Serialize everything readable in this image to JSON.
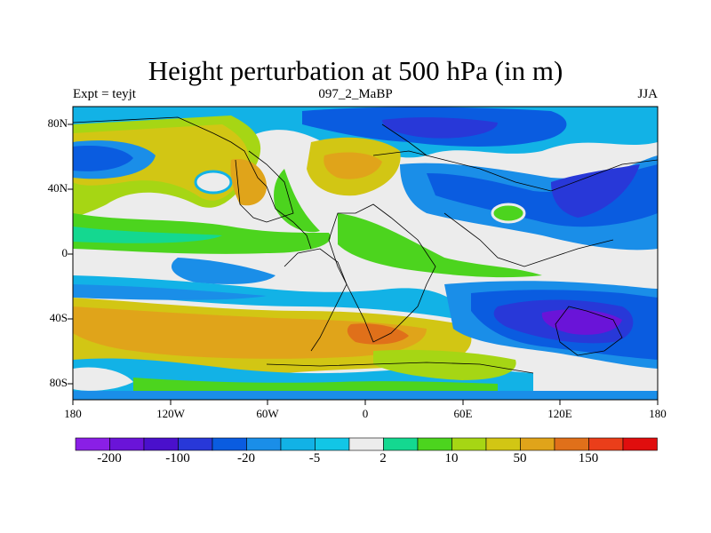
{
  "figure": {
    "title": "Height perturbation at 500 hPa (in m)",
    "left_label": "Expt = teyjt",
    "center_label": "097_2_MaBP",
    "right_label": "JJA"
  },
  "axes": {
    "lat_ticks": [
      "80N",
      "40N",
      "0",
      "40S",
      "80S"
    ],
    "lon_ticks": [
      "180",
      "120W",
      "60W",
      "0",
      "60E",
      "120E",
      "180"
    ]
  },
  "colorbar": {
    "colors": [
      "#8a1fe6",
      "#6a14d8",
      "#4a10cc",
      "#2838d8",
      "#0a5ce0",
      "#1a8ee8",
      "#12b2e6",
      "#12c6e6",
      "#ececec",
      "#14d890",
      "#4cd41e",
      "#a6d614",
      "#d2c614",
      "#e0a41a",
      "#e0701a",
      "#ea3e1a",
      "#e00e0e"
    ],
    "labels": [
      "-200",
      "-100",
      "-20",
      "-5",
      "2",
      "10",
      "50",
      "150"
    ]
  },
  "map": {
    "background": "#ececec",
    "fields": [
      {
        "color": "#d2c614",
        "desc": "subtropical south high"
      },
      {
        "color": "#e0a41a",
        "desc": "southern orange core"
      },
      {
        "color": "#1a8ee8",
        "desc": "southern pacific low"
      },
      {
        "color": "#4a10cc",
        "desc": "southern pacific deep low"
      },
      {
        "color": "#0a5ce0",
        "desc": "asian low"
      },
      {
        "color": "#4cd41e",
        "desc": "tropical africa"
      }
    ]
  }
}
